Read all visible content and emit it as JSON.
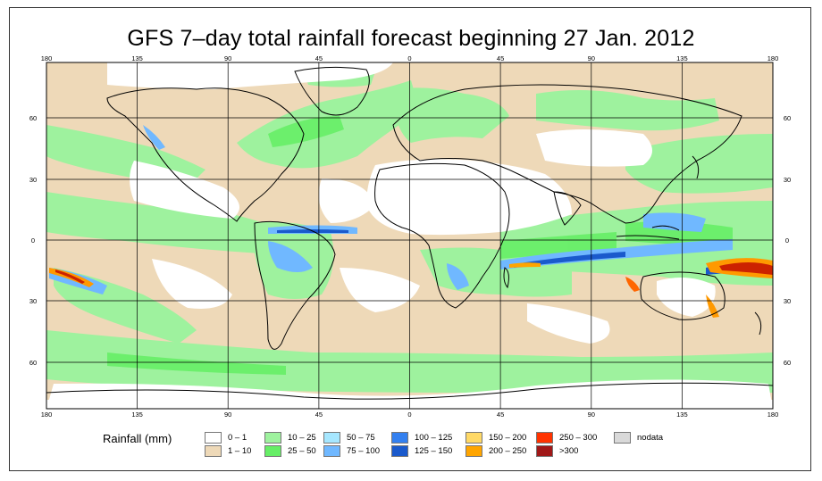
{
  "title": "GFS 7–day total rainfall forecast beginning 27 Jan. 2012",
  "map": {
    "lon_labels": [
      "180",
      "135",
      "90",
      "45",
      "0",
      "45",
      "90",
      "135",
      "180"
    ],
    "lat_labels": [
      "60",
      "30",
      "0",
      "30",
      "60"
    ],
    "projection": "equirectangular",
    "colors": {
      "ocean_low": "#ffffff",
      "light": "#eed9b8",
      "green": "#9ef29e",
      "green_dark": "#66ee66",
      "blue_light": "#a6e7ff",
      "blue": "#3399ff",
      "orange": "#ff9900",
      "red": "#cc2200",
      "coast": "#000000",
      "grid": "#000000"
    }
  },
  "legend": {
    "title": "Rainfall (mm)",
    "items": [
      {
        "label": "0 – 1",
        "color": "#ffffff"
      },
      {
        "label": "1 – 10",
        "color": "#eed9b8"
      },
      {
        "label": "10 – 25",
        "color": "#9ef29e"
      },
      {
        "label": "25 – 50",
        "color": "#66ee66"
      },
      {
        "label": "50 – 75",
        "color": "#a6e7ff"
      },
      {
        "label": "75 – 100",
        "color": "#70b8ff"
      },
      {
        "label": "100 – 125",
        "color": "#3380f0"
      },
      {
        "label": "125 – 150",
        "color": "#1a5acc"
      },
      {
        "label": "150 – 200",
        "color": "#ffd966"
      },
      {
        "label": "200 – 250",
        "color": "#ffa500"
      },
      {
        "label": "250 – 300",
        "color": "#ff3300"
      },
      {
        "label": ">300",
        "color": "#a01818"
      },
      {
        "label": "nodata",
        "color": "#d9d9d9"
      }
    ]
  }
}
